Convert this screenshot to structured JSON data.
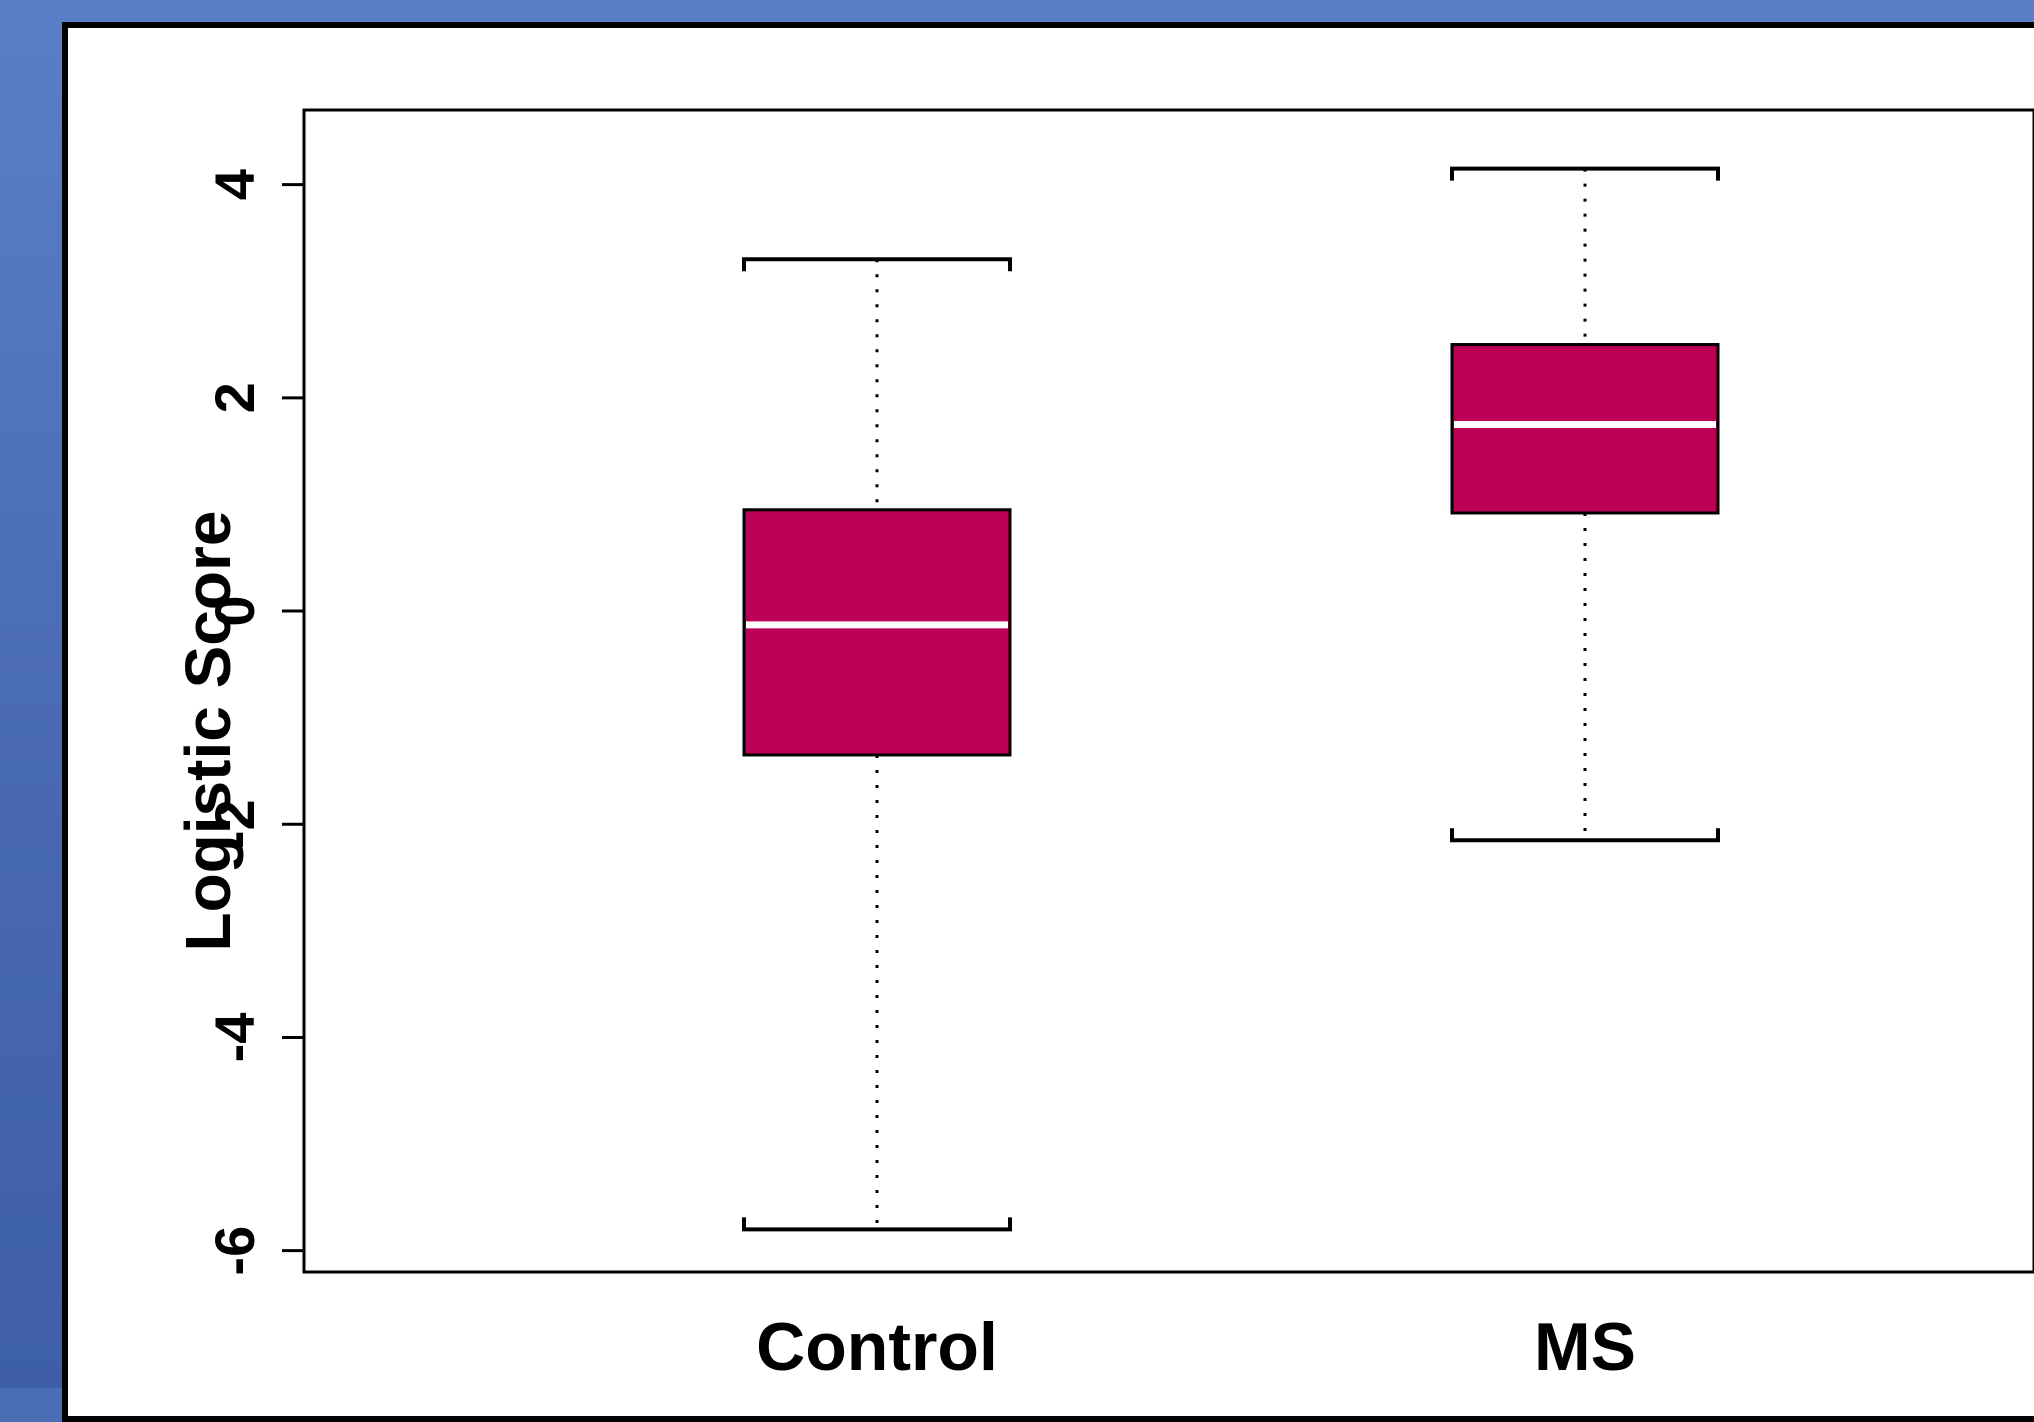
{
  "chart_data": {
    "type": "boxplot",
    "ylabel": "Logistic Score",
    "xlabel": "",
    "ylim": [
      -6.2,
      4.7
    ],
    "yticks": [
      -6,
      -4,
      -2,
      0,
      2,
      4
    ],
    "categories": [
      "Control",
      "MS"
    ],
    "series": [
      {
        "name": "",
        "boxes": [
          {
            "category": "Control",
            "min": -5.8,
            "q1": -1.35,
            "median": -0.13,
            "q3": 0.95,
            "max": 3.3
          },
          {
            "category": "MS",
            "min": -2.15,
            "q1": 0.92,
            "median": 1.75,
            "q3": 2.5,
            "max": 4.15
          }
        ]
      }
    ],
    "colors": {
      "box_fill": "#bb0055",
      "median_line": "#ffffff",
      "outline": "#000000",
      "slide_background": "#4a6db3"
    }
  }
}
